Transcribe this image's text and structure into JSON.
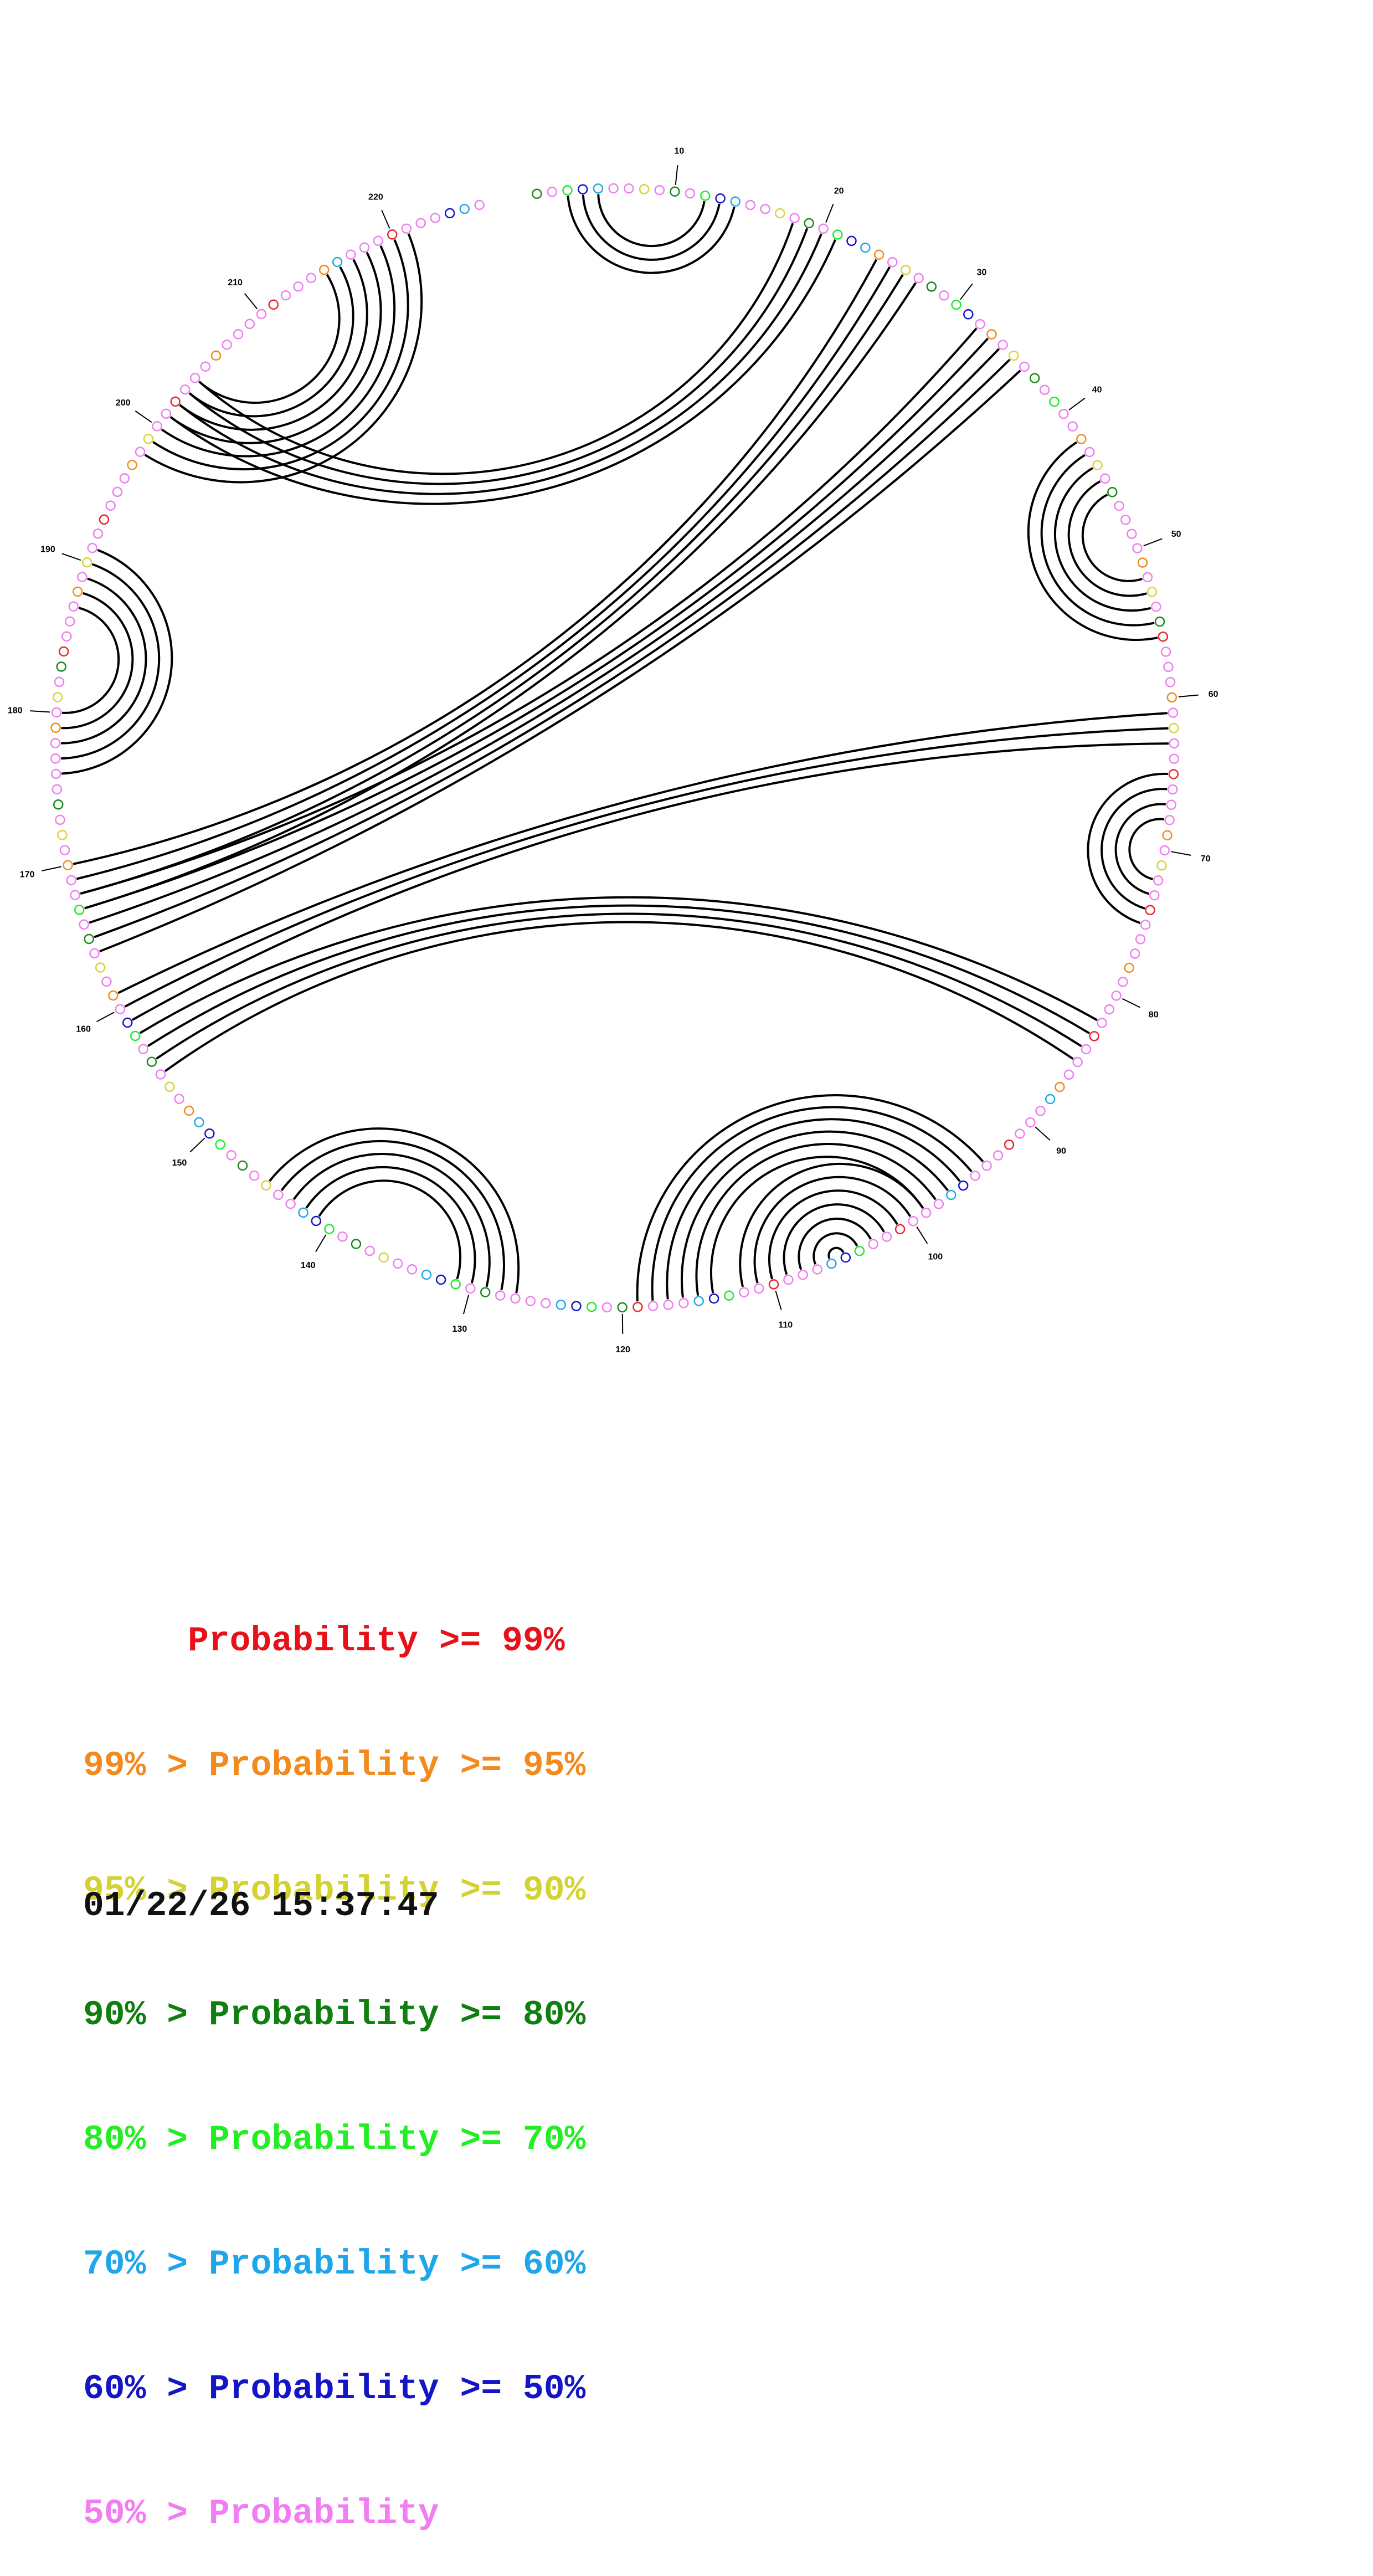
{
  "diagram": {
    "nucleotide_count": 226,
    "position_labels": [
      "10",
      "20",
      "30",
      "40",
      "50",
      "60",
      "70",
      "80",
      "90",
      "100",
      "110",
      "120",
      "130",
      "140",
      "150",
      "160",
      "170",
      "180",
      "190",
      "200",
      "210",
      "220"
    ],
    "helices": [
      {
        "i": 3,
        "j": 14,
        "len": 3
      },
      {
        "i": 18,
        "j": 204,
        "len": 4
      },
      {
        "i": 24,
        "j": 170,
        "len": 4
      },
      {
        "i": 32,
        "j": 168,
        "len": 5
      },
      {
        "i": 42,
        "j": 56,
        "len": 5
      },
      {
        "i": 61,
        "j": 161,
        "len": 3
      },
      {
        "i": 65,
        "j": 75,
        "len": 4
      },
      {
        "i": 82,
        "j": 158,
        "len": 4
      },
      {
        "i": 94,
        "j": 119,
        "len": 6
      },
      {
        "i": 99,
        "j": 112,
        "len": 7
      },
      {
        "i": 127,
        "j": 145,
        "len": 5
      },
      {
        "i": 176,
        "j": 191,
        "len": 5
      },
      {
        "i": 198,
        "j": 221,
        "len": 7
      }
    ],
    "base_colors": {
      "99": "#e8262e",
      "95": "#f28a1e",
      "90": "#d8d33a",
      "80": "#178a17",
      "70": "#22e82e",
      "60": "#20a8e6",
      "50": "#1414c8",
      "low": "#f07ef0"
    }
  },
  "legend": [
    {
      "text": "     Probability >= 99%",
      "color": "#e8111a"
    },
    {
      "text": "99% > Probability >= 95%",
      "color": "#f28a1e"
    },
    {
      "text": "95% > Probability >= 90%",
      "color": "#d4d232"
    },
    {
      "text": "90% > Probability >= 80%",
      "color": "#0f7f0f"
    },
    {
      "text": "80% > Probability >= 70%",
      "color": "#22ee22"
    },
    {
      "text": "70% > Probability >= 60%",
      "color": "#1fa6ea"
    },
    {
      "text": "60% > Probability >= 50%",
      "color": "#1515c8"
    },
    {
      "text": "50% > Probability",
      "color": "#f27cf2"
    }
  ],
  "timestamp": "01/22/26 15:37:47"
}
